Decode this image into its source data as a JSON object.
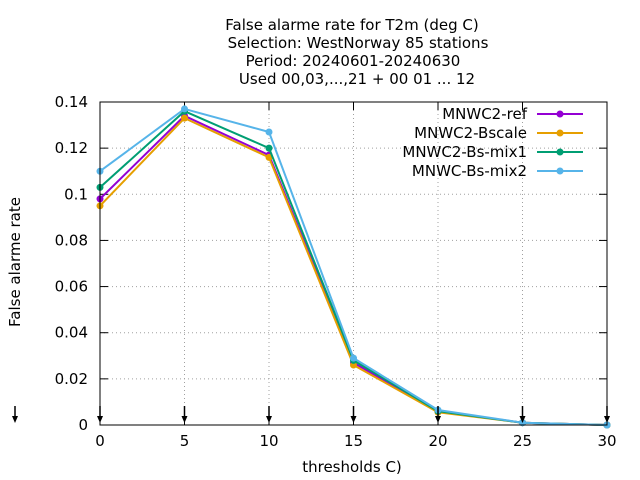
{
  "chart_data": {
    "type": "line",
    "title_lines": [
      "False alarme rate  for T2m (deg C)",
      "Selection: WestNorway     85 stations",
      "Period: 20240601-20240630",
      "Used 00,03,...,21 + 00 01 ... 12"
    ],
    "xlabel": "thresholds C)",
    "ylabel": "False alarme rate",
    "x": [
      0,
      5,
      10,
      15,
      20,
      25,
      30
    ],
    "xlim": [
      0,
      30
    ],
    "ylim": [
      0,
      0.14
    ],
    "x_ticks": [
      "0",
      "5",
      "10",
      "15",
      "20",
      "25",
      "30"
    ],
    "y_ticks": [
      "0",
      "0.02",
      "0.04",
      "0.06",
      "0.08",
      "0.1",
      "0.12",
      "0.14"
    ],
    "grid": true,
    "legend_position": "top-right",
    "series": [
      {
        "name": "MNWC2-ref",
        "color": "#9400d3",
        "values": [
          0.098,
          0.134,
          0.117,
          0.027,
          0.006,
          0.001,
          0.0
        ]
      },
      {
        "name": "MNWC2-Bscale",
        "color": "#e69f00",
        "values": [
          0.095,
          0.133,
          0.116,
          0.026,
          0.0055,
          0.001,
          0.0
        ]
      },
      {
        "name": "MNWC2-Bs-mix1",
        "color": "#009e73",
        "values": [
          0.103,
          0.136,
          0.12,
          0.028,
          0.006,
          0.001,
          0.0
        ]
      },
      {
        "name": "MNWC-Bs-mix2",
        "color": "#56b4e9",
        "values": [
          0.11,
          0.137,
          0.127,
          0.029,
          0.0065,
          0.001,
          0.0
        ]
      }
    ]
  }
}
